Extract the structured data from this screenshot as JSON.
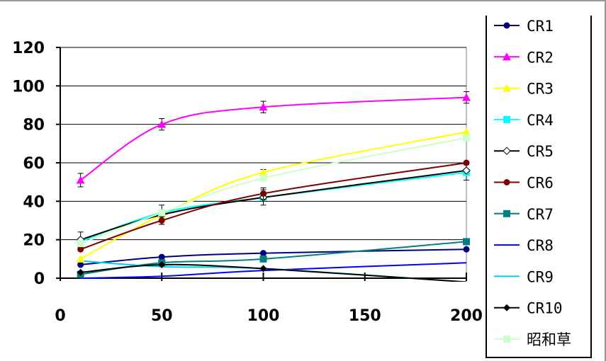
{
  "chart_data": {
    "type": "line",
    "title": "",
    "xlabel": "",
    "ylabel": "",
    "xlim": [
      0,
      200
    ],
    "ylim": [
      0,
      120
    ],
    "x_ticks": [
      0,
      50,
      100,
      150,
      200
    ],
    "y_ticks": [
      0,
      20,
      40,
      60,
      80,
      100,
      120
    ],
    "grid": "horizontal",
    "legend_position": "right",
    "x": [
      10,
      50,
      100,
      200
    ],
    "series": [
      {
        "name": "CR1",
        "color": "#000080",
        "marker": "circle",
        "values": [
          7,
          11,
          13,
          15
        ],
        "errors": [
          0,
          0,
          0,
          0
        ]
      },
      {
        "name": "CR2",
        "color": "#ff00ff",
        "marker": "triangle",
        "values": [
          51,
          80,
          89,
          94
        ],
        "errors": [
          3.5,
          3,
          3,
          3
        ]
      },
      {
        "name": "CR3",
        "color": "#ffff00",
        "marker": "triangle",
        "values": [
          10,
          33,
          55,
          76
        ],
        "errors": [
          0,
          0,
          1.5,
          0
        ]
      },
      {
        "name": "CR4",
        "color": "#00ffff",
        "marker": "square",
        "values": [
          19,
          34,
          42,
          55
        ],
        "errors": [
          0,
          0,
          0,
          4
        ]
      },
      {
        "name": "CR5",
        "color": "#000000",
        "marker": "diamond-open",
        "values": [
          20,
          33,
          42,
          56
        ],
        "errors": [
          4,
          5,
          4,
          0
        ]
      },
      {
        "name": "CR6",
        "color": "#800000",
        "marker": "circle",
        "values": [
          15,
          30,
          44,
          60
        ],
        "errors": [
          0,
          2,
          3,
          0
        ]
      },
      {
        "name": "CR7",
        "color": "#008080",
        "marker": "square",
        "values": [
          2,
          8,
          10,
          19
        ],
        "errors": [
          0,
          0,
          0,
          0
        ]
      },
      {
        "name": "CR8",
        "color": "#0000ff",
        "marker": "none",
        "values": [
          0,
          1,
          4,
          8
        ],
        "errors": [
          0,
          0,
          0,
          0
        ]
      },
      {
        "name": "CR9",
        "color": "#00ccff",
        "marker": "none",
        "values": [
          9,
          6,
          5,
          -2
        ],
        "errors": [
          0,
          0,
          0,
          0
        ]
      },
      {
        "name": "CR10",
        "color": "#000000",
        "marker": "diamond",
        "values": [
          3,
          7,
          5,
          -2
        ],
        "errors": [
          0,
          0,
          0,
          0
        ]
      },
      {
        "name": "昭和草",
        "color": "#ccffcc",
        "marker": "square",
        "values": [
          18,
          34,
          52,
          73
        ],
        "errors": [
          0,
          0,
          0,
          0
        ]
      }
    ]
  }
}
